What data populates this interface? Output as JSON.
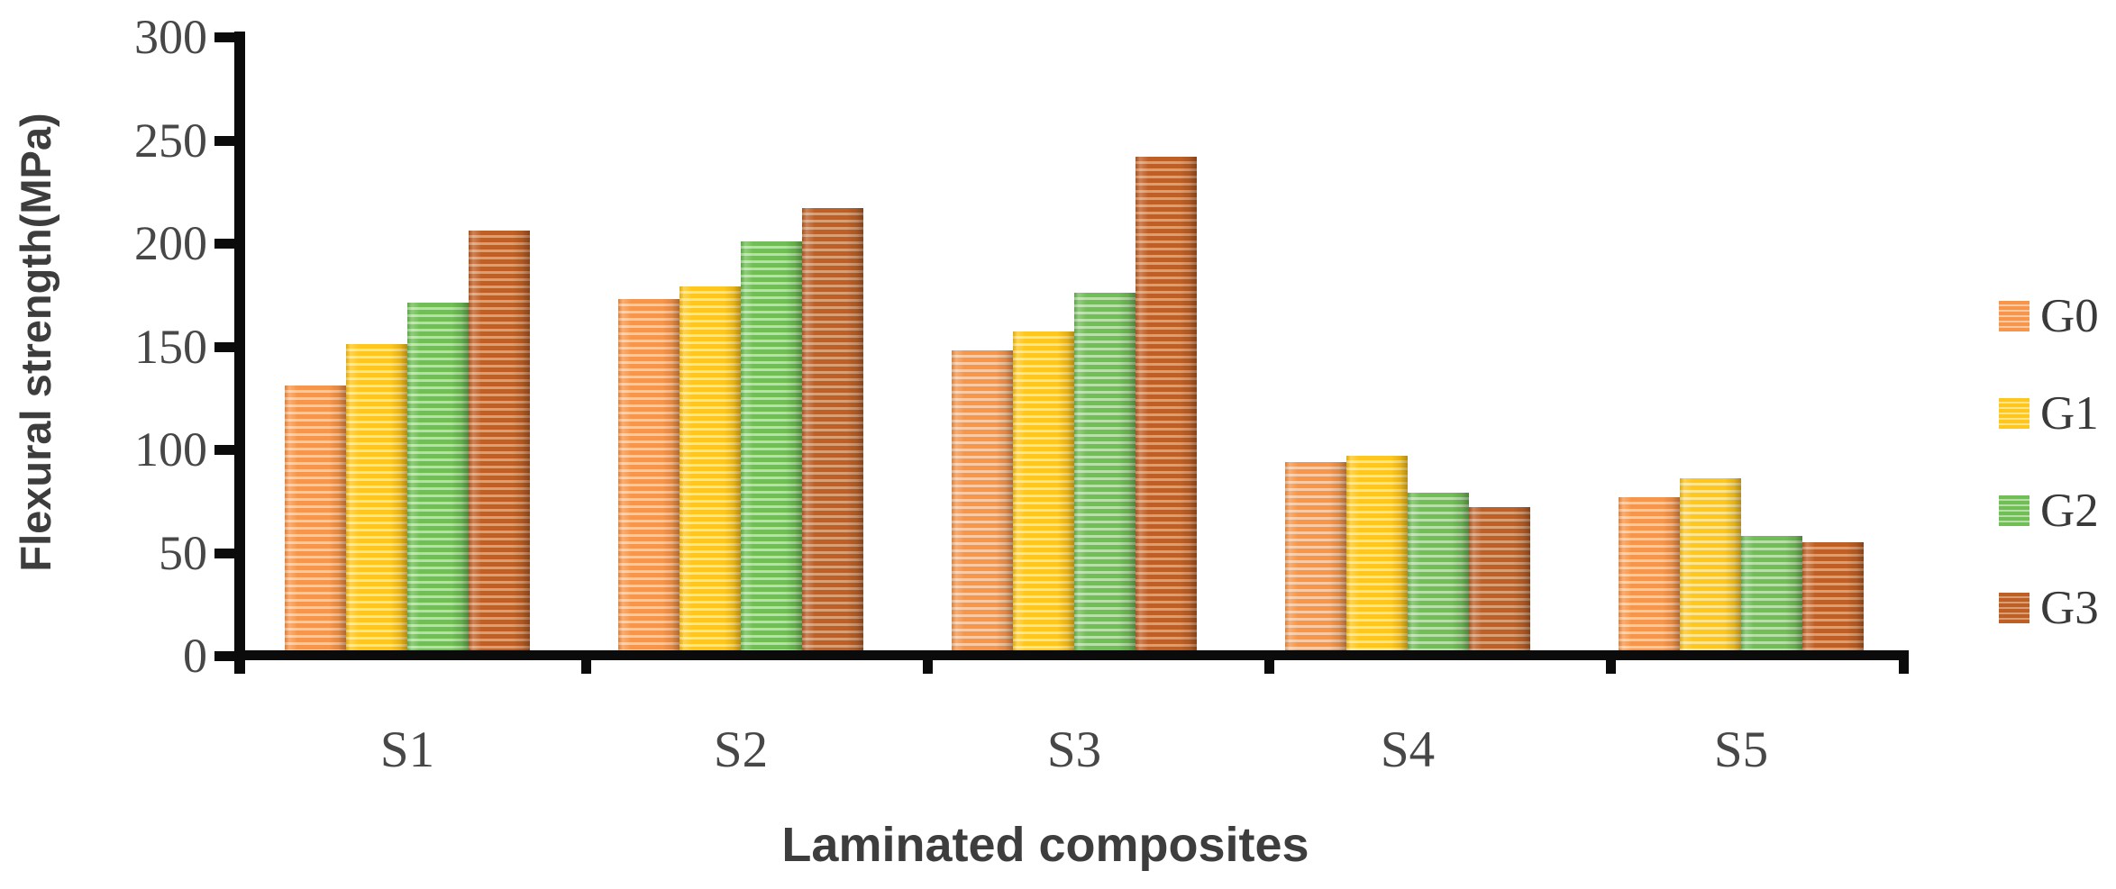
{
  "figure": {
    "background": "#ffffff",
    "text_color": "#474747",
    "axis_color": "#0b0b0b",
    "title_color": "#3d3d3d"
  },
  "chart_data": {
    "type": "bar",
    "title": "",
    "xlabel": "Laminated composites",
    "ylabel": "Flexural strength(MPa)",
    "categories": [
      "S1",
      "S2",
      "S3",
      "S4",
      "S5"
    ],
    "series": [
      {
        "name": "G0",
        "color": "#F7964B",
        "color_light": "#FBC9A2",
        "values": [
          131,
          173,
          148,
          94,
          77
        ]
      },
      {
        "name": "G1",
        "color": "#FFC61E",
        "color_light": "#FFE58A",
        "values": [
          151,
          179,
          157,
          97,
          86
        ]
      },
      {
        "name": "G2",
        "color": "#70BE55",
        "color_light": "#B6E0A6",
        "values": [
          171,
          201,
          176,
          79,
          58
        ]
      },
      {
        "name": "G3",
        "color": "#BE6026",
        "color_light": "#DA9E74",
        "values": [
          206,
          217,
          242,
          72,
          55
        ]
      }
    ],
    "ylim": [
      0,
      300
    ],
    "yticks": [
      0,
      50,
      100,
      150,
      200,
      250,
      300
    ],
    "ytick_labels": [
      "0",
      "50",
      "100",
      "150",
      "200",
      "250",
      "300"
    ],
    "grid": false,
    "legend_position": "right",
    "legend_labels": [
      "G0",
      "G1",
      "G2",
      "G3"
    ],
    "bar_texture": "horizontal-stripes"
  }
}
